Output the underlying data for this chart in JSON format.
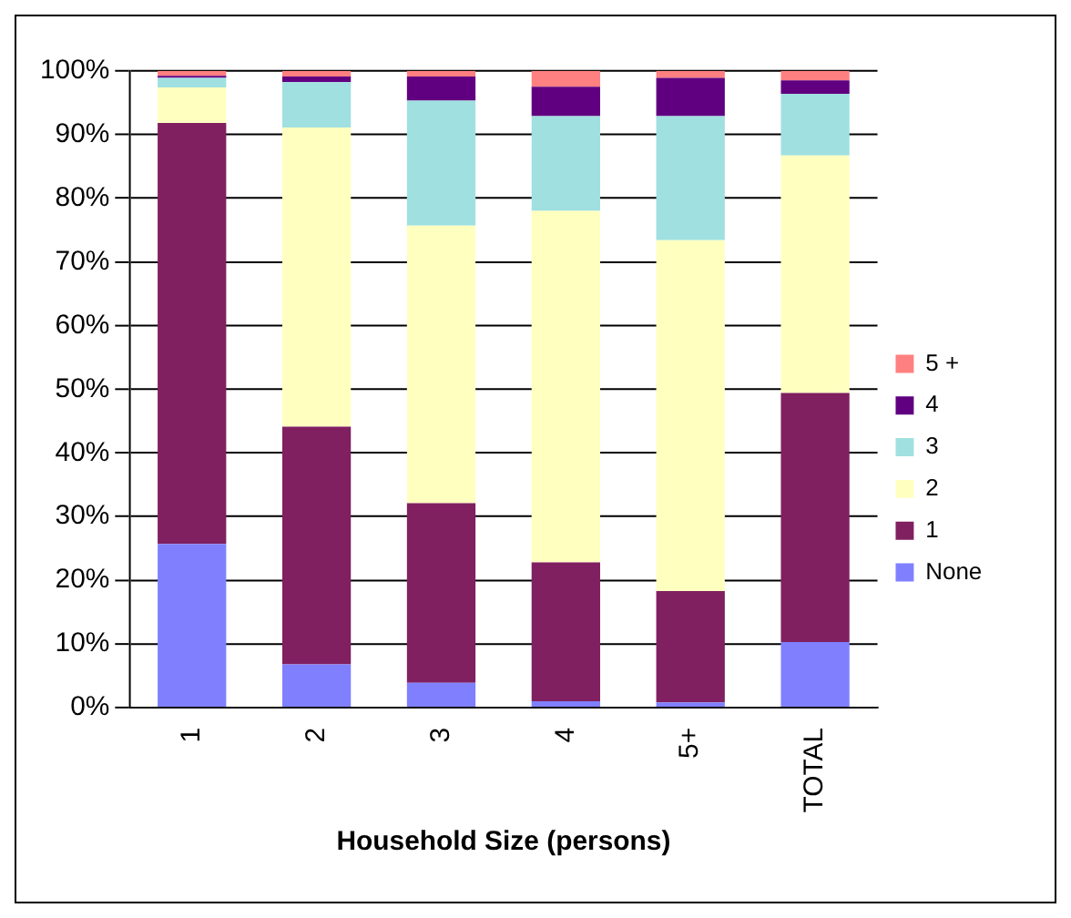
{
  "chart_data": {
    "type": "bar",
    "stacked": true,
    "xlabel": "Household Size (persons)",
    "categories": [
      "1",
      "2",
      "3",
      "4",
      "5+",
      "TOTAL"
    ],
    "series": [
      {
        "name": "None",
        "color": "#8080ff",
        "values": [
          25.7,
          6.8,
          3.9,
          1.0,
          0.8,
          10.3
        ]
      },
      {
        "name": "1",
        "color": "#802060",
        "values": [
          66.1,
          37.3,
          28.2,
          21.8,
          17.5,
          39.1
        ]
      },
      {
        "name": "2",
        "color": "#ffffc0",
        "values": [
          5.6,
          47.0,
          43.6,
          55.2,
          55.1,
          37.3
        ]
      },
      {
        "name": "3",
        "color": "#a0e0e0",
        "values": [
          1.5,
          7.1,
          19.6,
          14.9,
          19.5,
          9.7
        ]
      },
      {
        "name": "4",
        "color": "#600080",
        "values": [
          0.3,
          0.9,
          3.8,
          4.6,
          6.0,
          2.1
        ]
      },
      {
        "name": "5 +",
        "color": "#ff8080",
        "values": [
          0.8,
          0.9,
          0.9,
          2.5,
          1.1,
          1.5
        ]
      }
    ],
    "ylim": [
      0,
      100
    ],
    "yticks": [
      {
        "value": 0,
        "label": "0%"
      },
      {
        "value": 10,
        "label": "10%"
      },
      {
        "value": 20,
        "label": "20%"
      },
      {
        "value": 30,
        "label": "30%"
      },
      {
        "value": 40,
        "label": "40%"
      },
      {
        "value": 50,
        "label": "50%"
      },
      {
        "value": 60,
        "label": "60%"
      },
      {
        "value": 70,
        "label": "70%"
      },
      {
        "value": 80,
        "label": "80%"
      },
      {
        "value": 90,
        "label": "90%"
      },
      {
        "value": 100,
        "label": "100%"
      }
    ],
    "grid": "y",
    "legend": "right"
  }
}
